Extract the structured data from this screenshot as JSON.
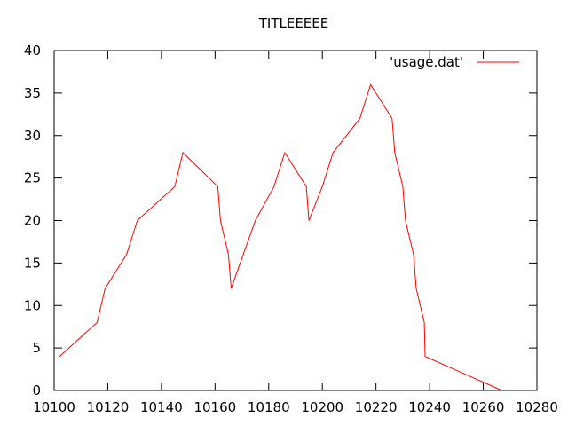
{
  "chart_data": {
    "type": "line",
    "title": "TITLEEEEE",
    "xlabel": "",
    "ylabel": "",
    "xlim": [
      10100,
      10280
    ],
    "ylim": [
      0,
      40
    ],
    "x_ticks": [
      10100,
      10120,
      10140,
      10160,
      10180,
      10200,
      10220,
      10240,
      10260,
      10280
    ],
    "y_ticks": [
      0,
      5,
      10,
      15,
      20,
      25,
      30,
      35,
      40
    ],
    "x_tick_labels": [
      "10100",
      "10120",
      "10140",
      "10160",
      "10180",
      "10200",
      "10220",
      "10240",
      "10260",
      "10280"
    ],
    "y_tick_labels": [
      "0",
      "5",
      "10",
      "15",
      "20",
      "25",
      "30",
      "35",
      "40"
    ],
    "grid": false,
    "legend_position": "top-right",
    "series": [
      {
        "name": "'usage.dat'",
        "color": "#ff0000",
        "x": [
          10102,
          10116,
          10119,
          10127,
          10131,
          10145,
          10148,
          10161,
          10162,
          10165,
          10166,
          10175,
          10182,
          10186,
          10194,
          10195,
          10200,
          10204,
          10214,
          10218,
          10226,
          10227,
          10230,
          10231,
          10234,
          10235,
          10238,
          10238.3,
          10267
        ],
        "y": [
          4,
          8,
          12,
          16,
          20,
          24,
          28,
          24,
          20,
          16,
          12,
          20,
          24,
          28,
          24,
          20,
          24,
          28,
          32,
          36,
          32,
          28,
          24,
          20,
          16,
          12,
          8,
          4,
          0
        ]
      }
    ]
  }
}
